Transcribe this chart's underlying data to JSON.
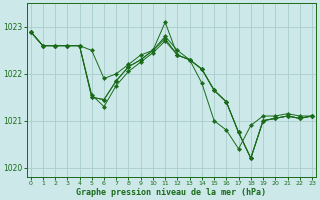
{
  "title": "Graphe pression niveau de la mer (hPa)",
  "bg_color": "#cce8e8",
  "grid_color": "#aacccc",
  "line_color": "#1a6b1a",
  "ylim": [
    1019.8,
    1023.5
  ],
  "xlim": [
    -0.3,
    23.3
  ],
  "yticks": [
    1020,
    1021,
    1022,
    1023
  ],
  "xticks": [
    0,
    1,
    2,
    3,
    4,
    5,
    6,
    7,
    8,
    9,
    10,
    11,
    12,
    13,
    14,
    15,
    16,
    17,
    18,
    19,
    20,
    21,
    22,
    23
  ],
  "series": [
    [
      1022.9,
      1022.6,
      1022.6,
      1022.6,
      1022.6,
      1022.5,
      1021.9,
      1022.0,
      1022.2,
      1022.4,
      1022.5,
      1022.8,
      1022.5,
      1022.3,
      1021.8,
      1021.0,
      1020.8,
      1020.4,
      1020.9,
      1021.1,
      1021.1,
      1021.15,
      1021.1,
      1021.1
    ],
    [
      1022.9,
      1022.6,
      1022.6,
      1022.6,
      1022.6,
      1021.5,
      1021.45,
      1021.85,
      1022.15,
      1022.3,
      1022.5,
      1023.1,
      1022.4,
      1022.3,
      1022.1,
      1021.65,
      1021.4,
      1020.75,
      1020.2,
      1021.0,
      1021.05,
      1021.1,
      1021.05,
      1021.1
    ],
    [
      1022.9,
      1022.6,
      1022.6,
      1022.6,
      1022.6,
      1021.5,
      1021.45,
      1021.85,
      1022.15,
      1022.3,
      1022.5,
      1022.75,
      1022.4,
      1022.3,
      1022.1,
      1021.65,
      1021.4,
      1020.75,
      1020.2,
      1021.0,
      1021.05,
      1021.1,
      1021.05,
      1021.1
    ],
    [
      1022.9,
      1022.6,
      1022.6,
      1022.6,
      1022.6,
      1021.55,
      1021.3,
      1021.75,
      1022.05,
      1022.25,
      1022.45,
      1022.7,
      1022.4,
      1022.3,
      1022.1,
      1021.65,
      1021.4,
      1020.75,
      1020.2,
      1021.0,
      1021.05,
      1021.1,
      1021.05,
      1021.1
    ]
  ],
  "trend_lines": [
    {
      "x0": 0,
      "y0": 1022.9,
      "x1": 23,
      "y1": 1021.1
    },
    {
      "x0": 0,
      "y0": 1022.9,
      "x1": 23,
      "y1": 1021.1
    },
    {
      "x0": 0,
      "y0": 1022.9,
      "x1": 23,
      "y1": 1021.1
    }
  ]
}
